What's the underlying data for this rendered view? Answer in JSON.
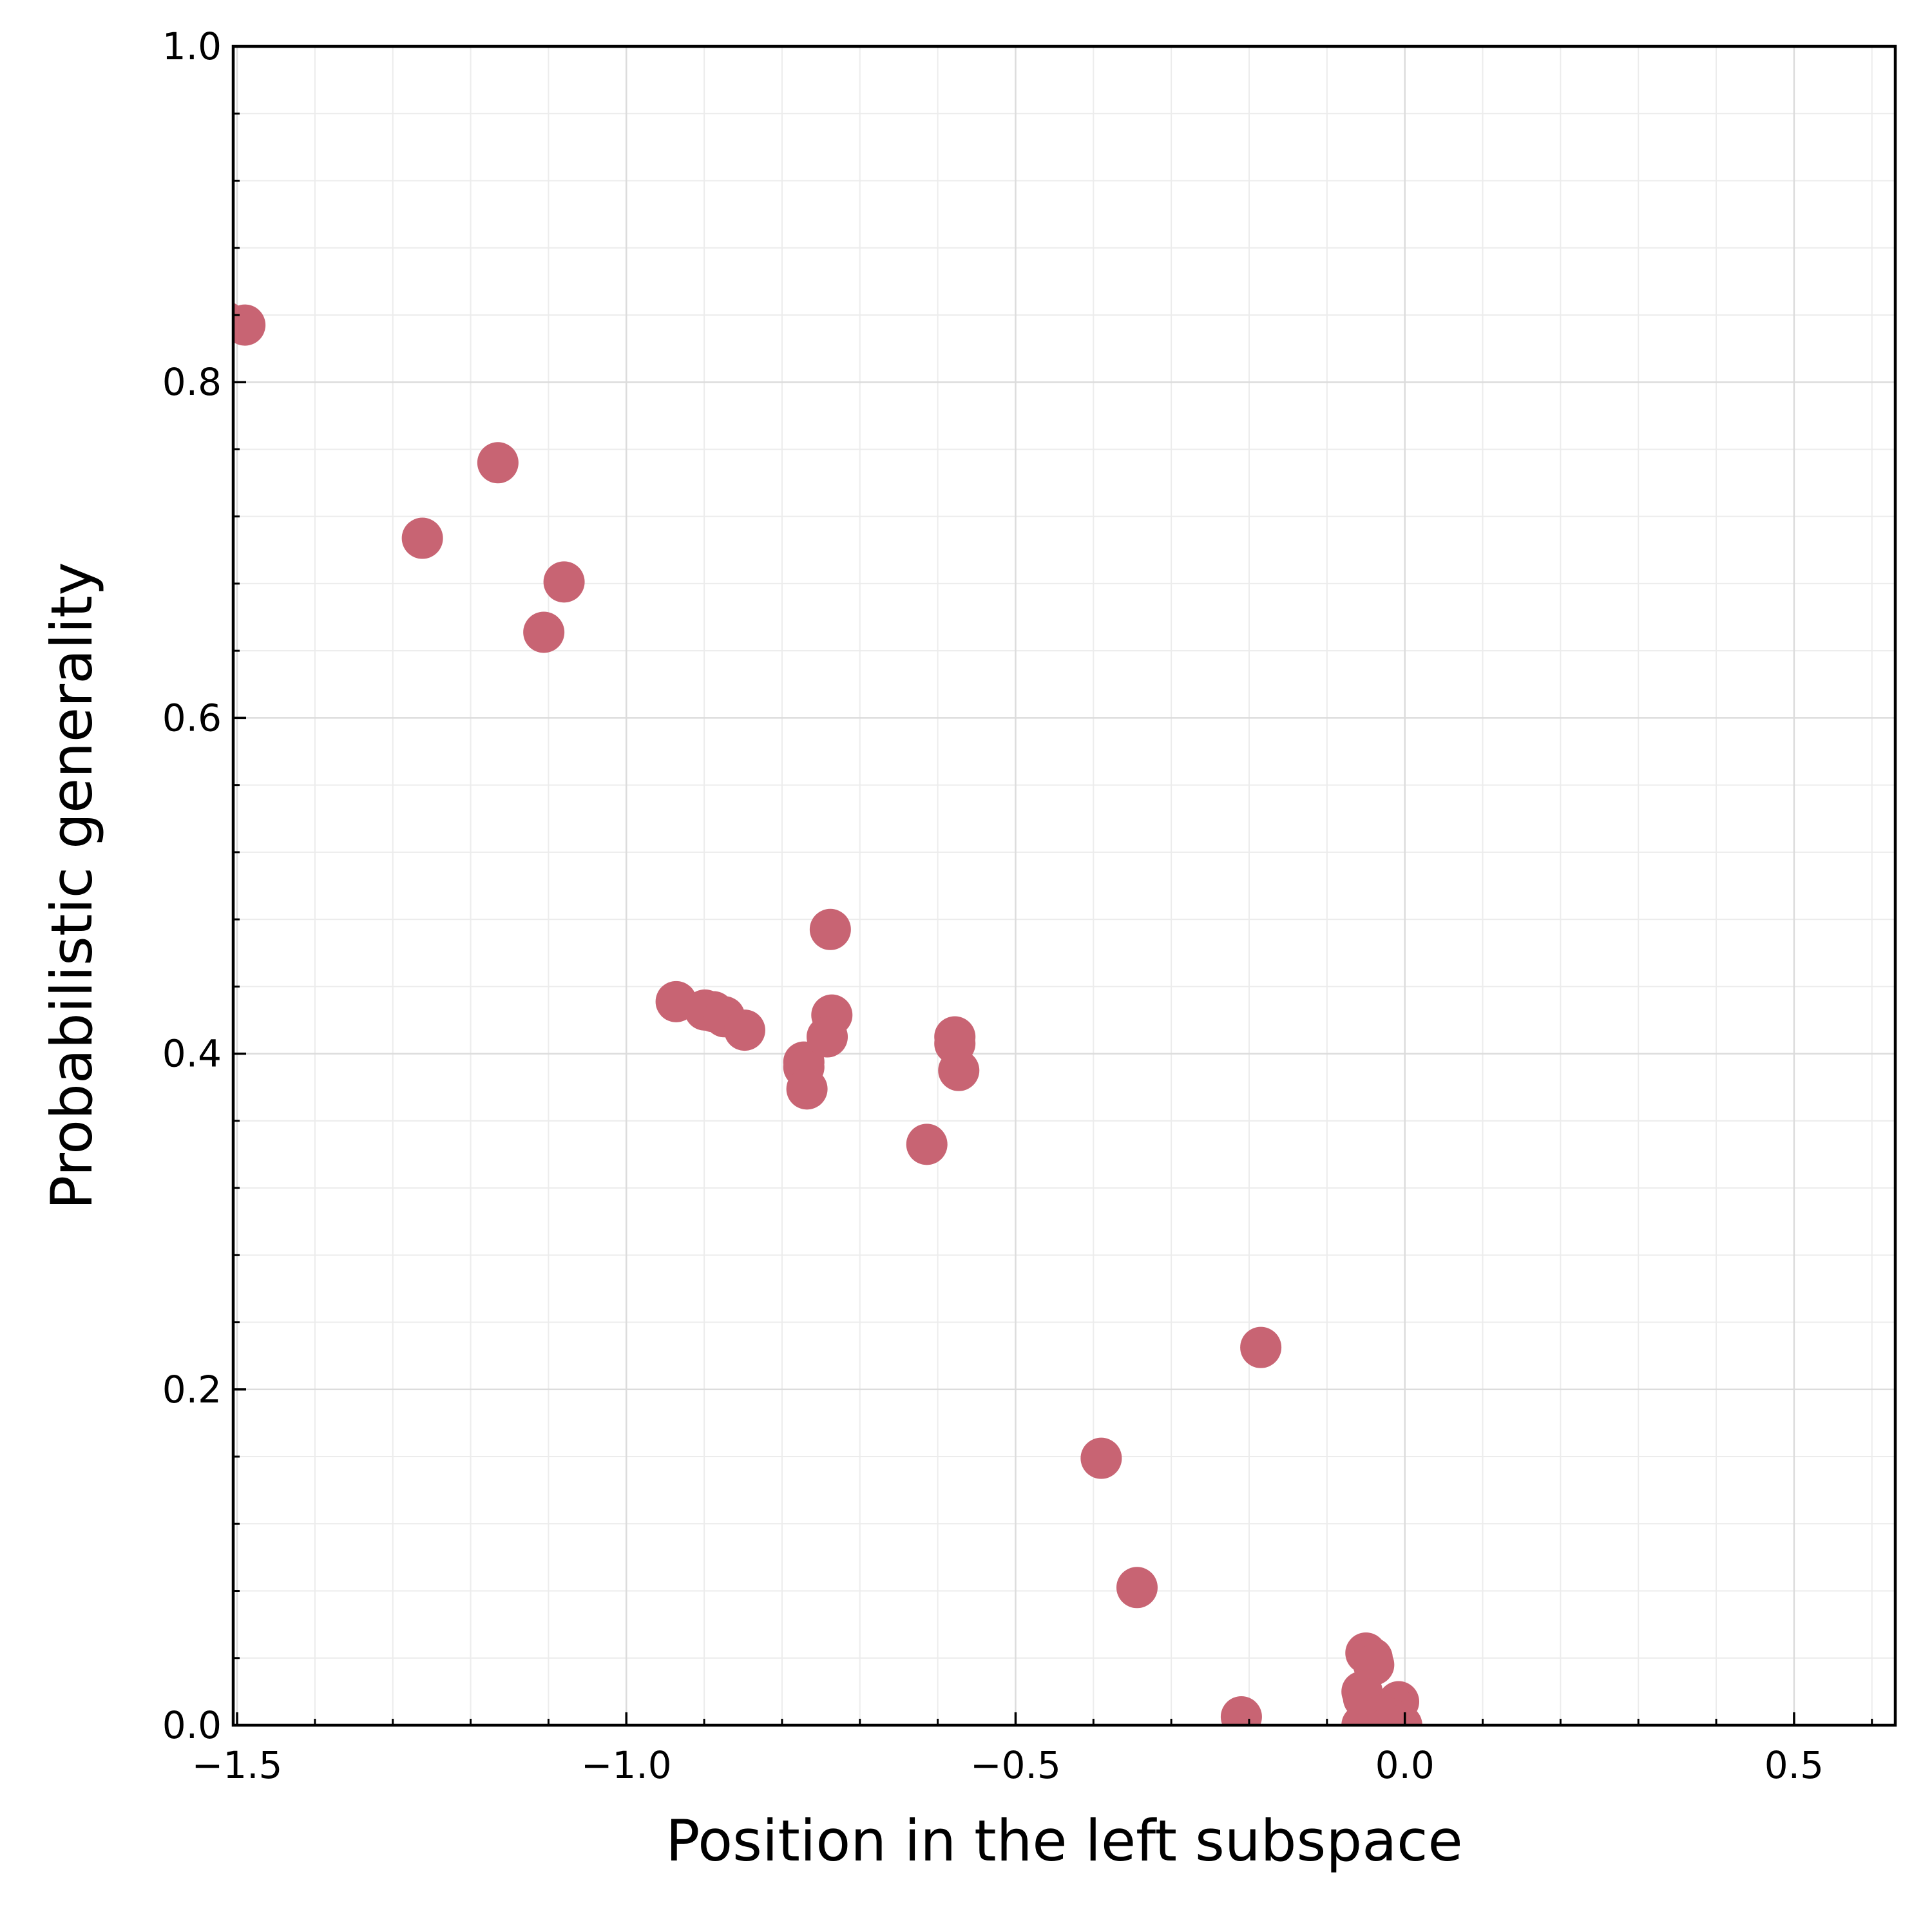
{
  "chart_data": {
    "type": "scatter",
    "title": "",
    "xlabel": "Position in the left subspace",
    "ylabel": "Probabilistic generality",
    "xlim": [
      -1.505,
      0.63
    ],
    "ylim": [
      0.0,
      1.0
    ],
    "x_ticks": [
      -1.5,
      -1.0,
      -0.5,
      0.0,
      0.5
    ],
    "x_tick_labels": [
      "−1.5",
      "−1.0",
      "−0.5",
      "0.0",
      "0.5"
    ],
    "y_ticks": [
      0.0,
      0.2,
      0.4,
      0.6,
      0.8,
      1.0
    ],
    "y_tick_labels": [
      "0.0",
      "0.2",
      "0.4",
      "0.6",
      "0.8",
      "1.0"
    ],
    "x_minor_step": 0.1,
    "y_minor_step": 0.04,
    "grid": true,
    "legend": "none",
    "marker_color": "#c86473",
    "points": [
      {
        "x": -1.515,
        "y": 0.836
      },
      {
        "x": -1.49,
        "y": 0.834
      },
      {
        "x": -1.262,
        "y": 0.707
      },
      {
        "x": -1.165,
        "y": 0.752
      },
      {
        "x": -1.08,
        "y": 0.681
      },
      {
        "x": -1.106,
        "y": 0.651
      },
      {
        "x": -0.936,
        "y": 0.431
      },
      {
        "x": -0.899,
        "y": 0.426
      },
      {
        "x": -0.888,
        "y": 0.425
      },
      {
        "x": -0.874,
        "y": 0.422
      },
      {
        "x": -0.848,
        "y": 0.414
      },
      {
        "x": -0.772,
        "y": 0.395
      },
      {
        "x": -0.772,
        "y": 0.392
      },
      {
        "x": -0.768,
        "y": 0.379
      },
      {
        "x": -0.738,
        "y": 0.474
      },
      {
        "x": -0.736,
        "y": 0.423
      },
      {
        "x": -0.742,
        "y": 0.41
      },
      {
        "x": -0.578,
        "y": 0.41
      },
      {
        "x": -0.578,
        "y": 0.406
      },
      {
        "x": -0.573,
        "y": 0.39
      },
      {
        "x": -0.614,
        "y": 0.346
      },
      {
        "x": -0.185,
        "y": 0.225
      },
      {
        "x": -0.39,
        "y": 0.159
      },
      {
        "x": -0.344,
        "y": 0.082
      },
      {
        "x": -0.21,
        "y": 0.005
      },
      {
        "x": -0.05,
        "y": 0.043
      },
      {
        "x": -0.042,
        "y": 0.04
      },
      {
        "x": -0.04,
        "y": 0.036
      },
      {
        "x": -0.055,
        "y": 0.02
      },
      {
        "x": -0.053,
        "y": 0.016
      },
      {
        "x": -0.008,
        "y": 0.014
      },
      {
        "x": -0.012,
        "y": 0.01
      },
      {
        "x": -0.03,
        "y": 0.006
      },
      {
        "x": -0.02,
        "y": 0.004
      },
      {
        "x": -0.055,
        "y": 0.0
      },
      {
        "x": -0.018,
        "y": 0.0
      },
      {
        "x": -0.004,
        "y": 0.0
      }
    ]
  }
}
